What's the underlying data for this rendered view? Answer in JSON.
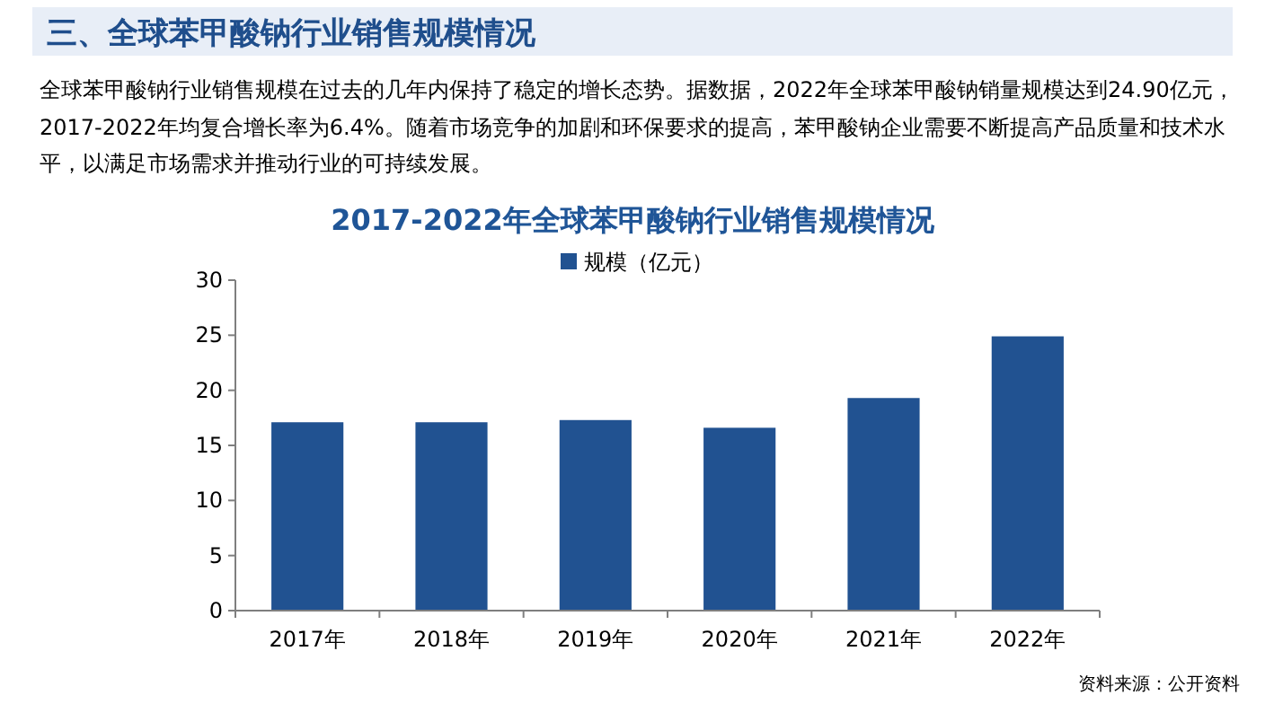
{
  "chart_data": {
    "type": "bar",
    "title": "2017-2022年全球苯甲酸钠行业销售规模情况",
    "subtitle": "全球苯甲酸钠行业销售规模在过去的几年内保持了稳定的增长态势。据数据，2022年全球苯甲酸钠销量规模达到24.90亿元，2017-2022年均复合增长率为6.4%。随着市场竞争的加剧和环保要求的提高，苯甲酸钠企业需要不断提高产品质量和技术水平，以满足市场需求并推动行业的可持续发展。",
    "annotations": [
      "三、全球苯甲酸钠行业销售规模情况",
      "资料来源：公开资料"
    ],
    "categories": [
      "2017年",
      "2018年",
      "2019年",
      "2020年",
      "2021年",
      "2022年"
    ],
    "series": [
      {
        "name": "规模（亿元）",
        "color": "#215291",
        "values": [
          17.1,
          17.1,
          17.3,
          16.6,
          19.3,
          24.9
        ]
      }
    ],
    "ylim": [
      0,
      30
    ],
    "yticks": [
      0,
      5,
      10,
      15,
      20,
      25,
      30
    ],
    "legend": "top",
    "grid": false
  }
}
